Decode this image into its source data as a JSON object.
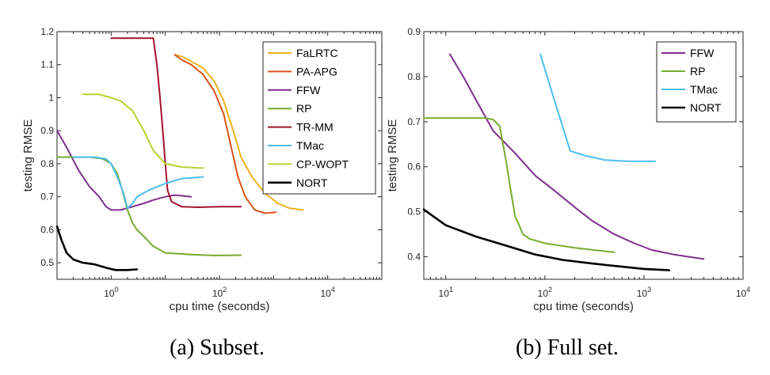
{
  "chart_data": [
    {
      "type": "line",
      "caption": "(a) Subset.",
      "xlabel": "cpu time (seconds)",
      "ylabel": "testing RMSE",
      "xscale": "log",
      "xlim": [
        0.1,
        100000
      ],
      "ylim": [
        0.45,
        1.2
      ],
      "xticks": [
        {
          "v": 1,
          "base": "10",
          "exp": "0"
        },
        {
          "v": 100,
          "base": "10",
          "exp": "2"
        },
        {
          "v": 10000,
          "base": "10",
          "exp": "4"
        }
      ],
      "yticks": [
        {
          "v": 0.5,
          "label": "0.5"
        },
        {
          "v": 0.6,
          "label": "0.6"
        },
        {
          "v": 0.7,
          "label": "0.7"
        },
        {
          "v": 0.8,
          "label": "0.8"
        },
        {
          "v": 0.9,
          "label": "0.9"
        },
        {
          "v": 1.0,
          "label": "1"
        },
        {
          "v": 1.1,
          "label": "1.1"
        },
        {
          "v": 1.2,
          "label": "1.2"
        }
      ],
      "grid": false,
      "legend_position": "top-right",
      "series": [
        {
          "name": "FaLRTC",
          "color": "#EDB120",
          "x": [
            15,
            20,
            30,
            50,
            80,
            120,
            180,
            250,
            400,
            700,
            1200,
            2000,
            3500
          ],
          "y": [
            1.13,
            1.125,
            1.11,
            1.09,
            1.05,
            0.99,
            0.9,
            0.82,
            0.76,
            0.71,
            0.68,
            0.665,
            0.66
          ]
        },
        {
          "name": "PA-APG",
          "color": "#D95319",
          "x": [
            15,
            20,
            30,
            50,
            80,
            120,
            160,
            220,
            300,
            450,
            700,
            1100
          ],
          "y": [
            1.13,
            1.115,
            1.1,
            1.07,
            1.02,
            0.95,
            0.86,
            0.76,
            0.7,
            0.66,
            0.65,
            0.653
          ]
        },
        {
          "name": "FFW",
          "color": "#7E2F8E",
          "x": [
            0.1,
            0.15,
            0.25,
            0.4,
            0.6,
            0.8,
            1.0,
            1.5,
            2.5,
            4,
            6,
            10,
            15,
            20,
            30
          ],
          "y": [
            0.9,
            0.85,
            0.78,
            0.73,
            0.7,
            0.67,
            0.66,
            0.66,
            0.67,
            0.68,
            0.69,
            0.7,
            0.705,
            0.703,
            0.7
          ]
        },
        {
          "name": "RP",
          "color": "#77AC30",
          "x": [
            0.1,
            0.2,
            0.4,
            0.7,
            1.0,
            1.3,
            1.6,
            2.0,
            2.5,
            3,
            4,
            6,
            10,
            30,
            80,
            250
          ],
          "y": [
            0.82,
            0.82,
            0.82,
            0.815,
            0.8,
            0.77,
            0.72,
            0.66,
            0.62,
            0.6,
            0.58,
            0.55,
            0.53,
            0.525,
            0.522,
            0.523
          ]
        },
        {
          "name": "TR-MM",
          "color": "#A2142F",
          "x": [
            1.0,
            2.5,
            4,
            6,
            7,
            8,
            9,
            10,
            11,
            13,
            20,
            40,
            100,
            250
          ],
          "y": [
            1.18,
            1.18,
            1.18,
            1.18,
            1.1,
            1.0,
            0.9,
            0.8,
            0.72,
            0.685,
            0.67,
            0.668,
            0.67,
            0.67
          ]
        },
        {
          "name": "TMac",
          "color": "#4DBEEE",
          "x": [
            0.2,
            0.5,
            0.8,
            1.0,
            1.3,
            1.7,
            2.0,
            2.5,
            3,
            5,
            10,
            20,
            50
          ],
          "y": [
            0.82,
            0.82,
            0.815,
            0.8,
            0.76,
            0.71,
            0.665,
            0.68,
            0.7,
            0.72,
            0.74,
            0.755,
            0.76
          ]
        },
        {
          "name": "CP-WOPT",
          "color": "#B5D334",
          "x": [
            0.3,
            0.6,
            1.0,
            1.5,
            2.5,
            4,
            6,
            10,
            20,
            50
          ],
          "y": [
            1.01,
            1.01,
            1.0,
            0.99,
            0.96,
            0.9,
            0.84,
            0.8,
            0.79,
            0.787
          ]
        },
        {
          "name": "NORT",
          "color": "#000000",
          "x": [
            0.1,
            0.12,
            0.15,
            0.2,
            0.3,
            0.5,
            0.8,
            1.2,
            2.0,
            3.0
          ],
          "y": [
            0.61,
            0.57,
            0.53,
            0.51,
            0.5,
            0.495,
            0.485,
            0.478,
            0.478,
            0.48
          ]
        }
      ]
    },
    {
      "type": "line",
      "caption": "(b) Full set.",
      "xlabel": "cpu time (seconds)",
      "ylabel": "testing RMSE",
      "xscale": "log",
      "xlim": [
        6,
        10000
      ],
      "ylim": [
        0.35,
        0.9
      ],
      "xticks": [
        {
          "v": 10,
          "base": "10",
          "exp": "1"
        },
        {
          "v": 100,
          "base": "10",
          "exp": "2"
        },
        {
          "v": 1000,
          "base": "10",
          "exp": "3"
        },
        {
          "v": 10000,
          "base": "10",
          "exp": "4"
        }
      ],
      "yticks": [
        {
          "v": 0.4,
          "label": "0.4"
        },
        {
          "v": 0.5,
          "label": "0.5"
        },
        {
          "v": 0.6,
          "label": "0.6"
        },
        {
          "v": 0.7,
          "label": "0.7"
        },
        {
          "v": 0.8,
          "label": "0.8"
        },
        {
          "v": 0.9,
          "label": "0.9"
        }
      ],
      "grid": false,
      "legend_position": "top-right",
      "series": [
        {
          "name": "FFW",
          "color": "#7E2F8E",
          "x": [
            11,
            15,
            20,
            30,
            50,
            80,
            120,
            200,
            300,
            500,
            800,
            1200,
            2000,
            4000
          ],
          "y": [
            0.85,
            0.8,
            0.75,
            0.68,
            0.63,
            0.58,
            0.55,
            0.51,
            0.48,
            0.45,
            0.43,
            0.415,
            0.405,
            0.395
          ]
        },
        {
          "name": "RP",
          "color": "#77AC30",
          "x": [
            6,
            15,
            25,
            30,
            35,
            40,
            45,
            50,
            55,
            60,
            70,
            100,
            200,
            500
          ],
          "y": [
            0.708,
            0.708,
            0.708,
            0.705,
            0.69,
            0.62,
            0.55,
            0.49,
            0.47,
            0.45,
            0.44,
            0.43,
            0.42,
            0.41
          ]
        },
        {
          "name": "TMac",
          "color": "#4DBEEE",
          "x": [
            90,
            120,
            180,
            250,
            400,
            700,
            1300
          ],
          "y": [
            0.85,
            0.76,
            0.635,
            0.625,
            0.615,
            0.612,
            0.612
          ]
        },
        {
          "name": "NORT",
          "color": "#000000",
          "x": [
            6,
            10,
            20,
            40,
            80,
            150,
            300,
            600,
            1000,
            1800
          ],
          "y": [
            0.505,
            0.47,
            0.445,
            0.425,
            0.405,
            0.393,
            0.385,
            0.378,
            0.373,
            0.37
          ]
        }
      ]
    }
  ]
}
